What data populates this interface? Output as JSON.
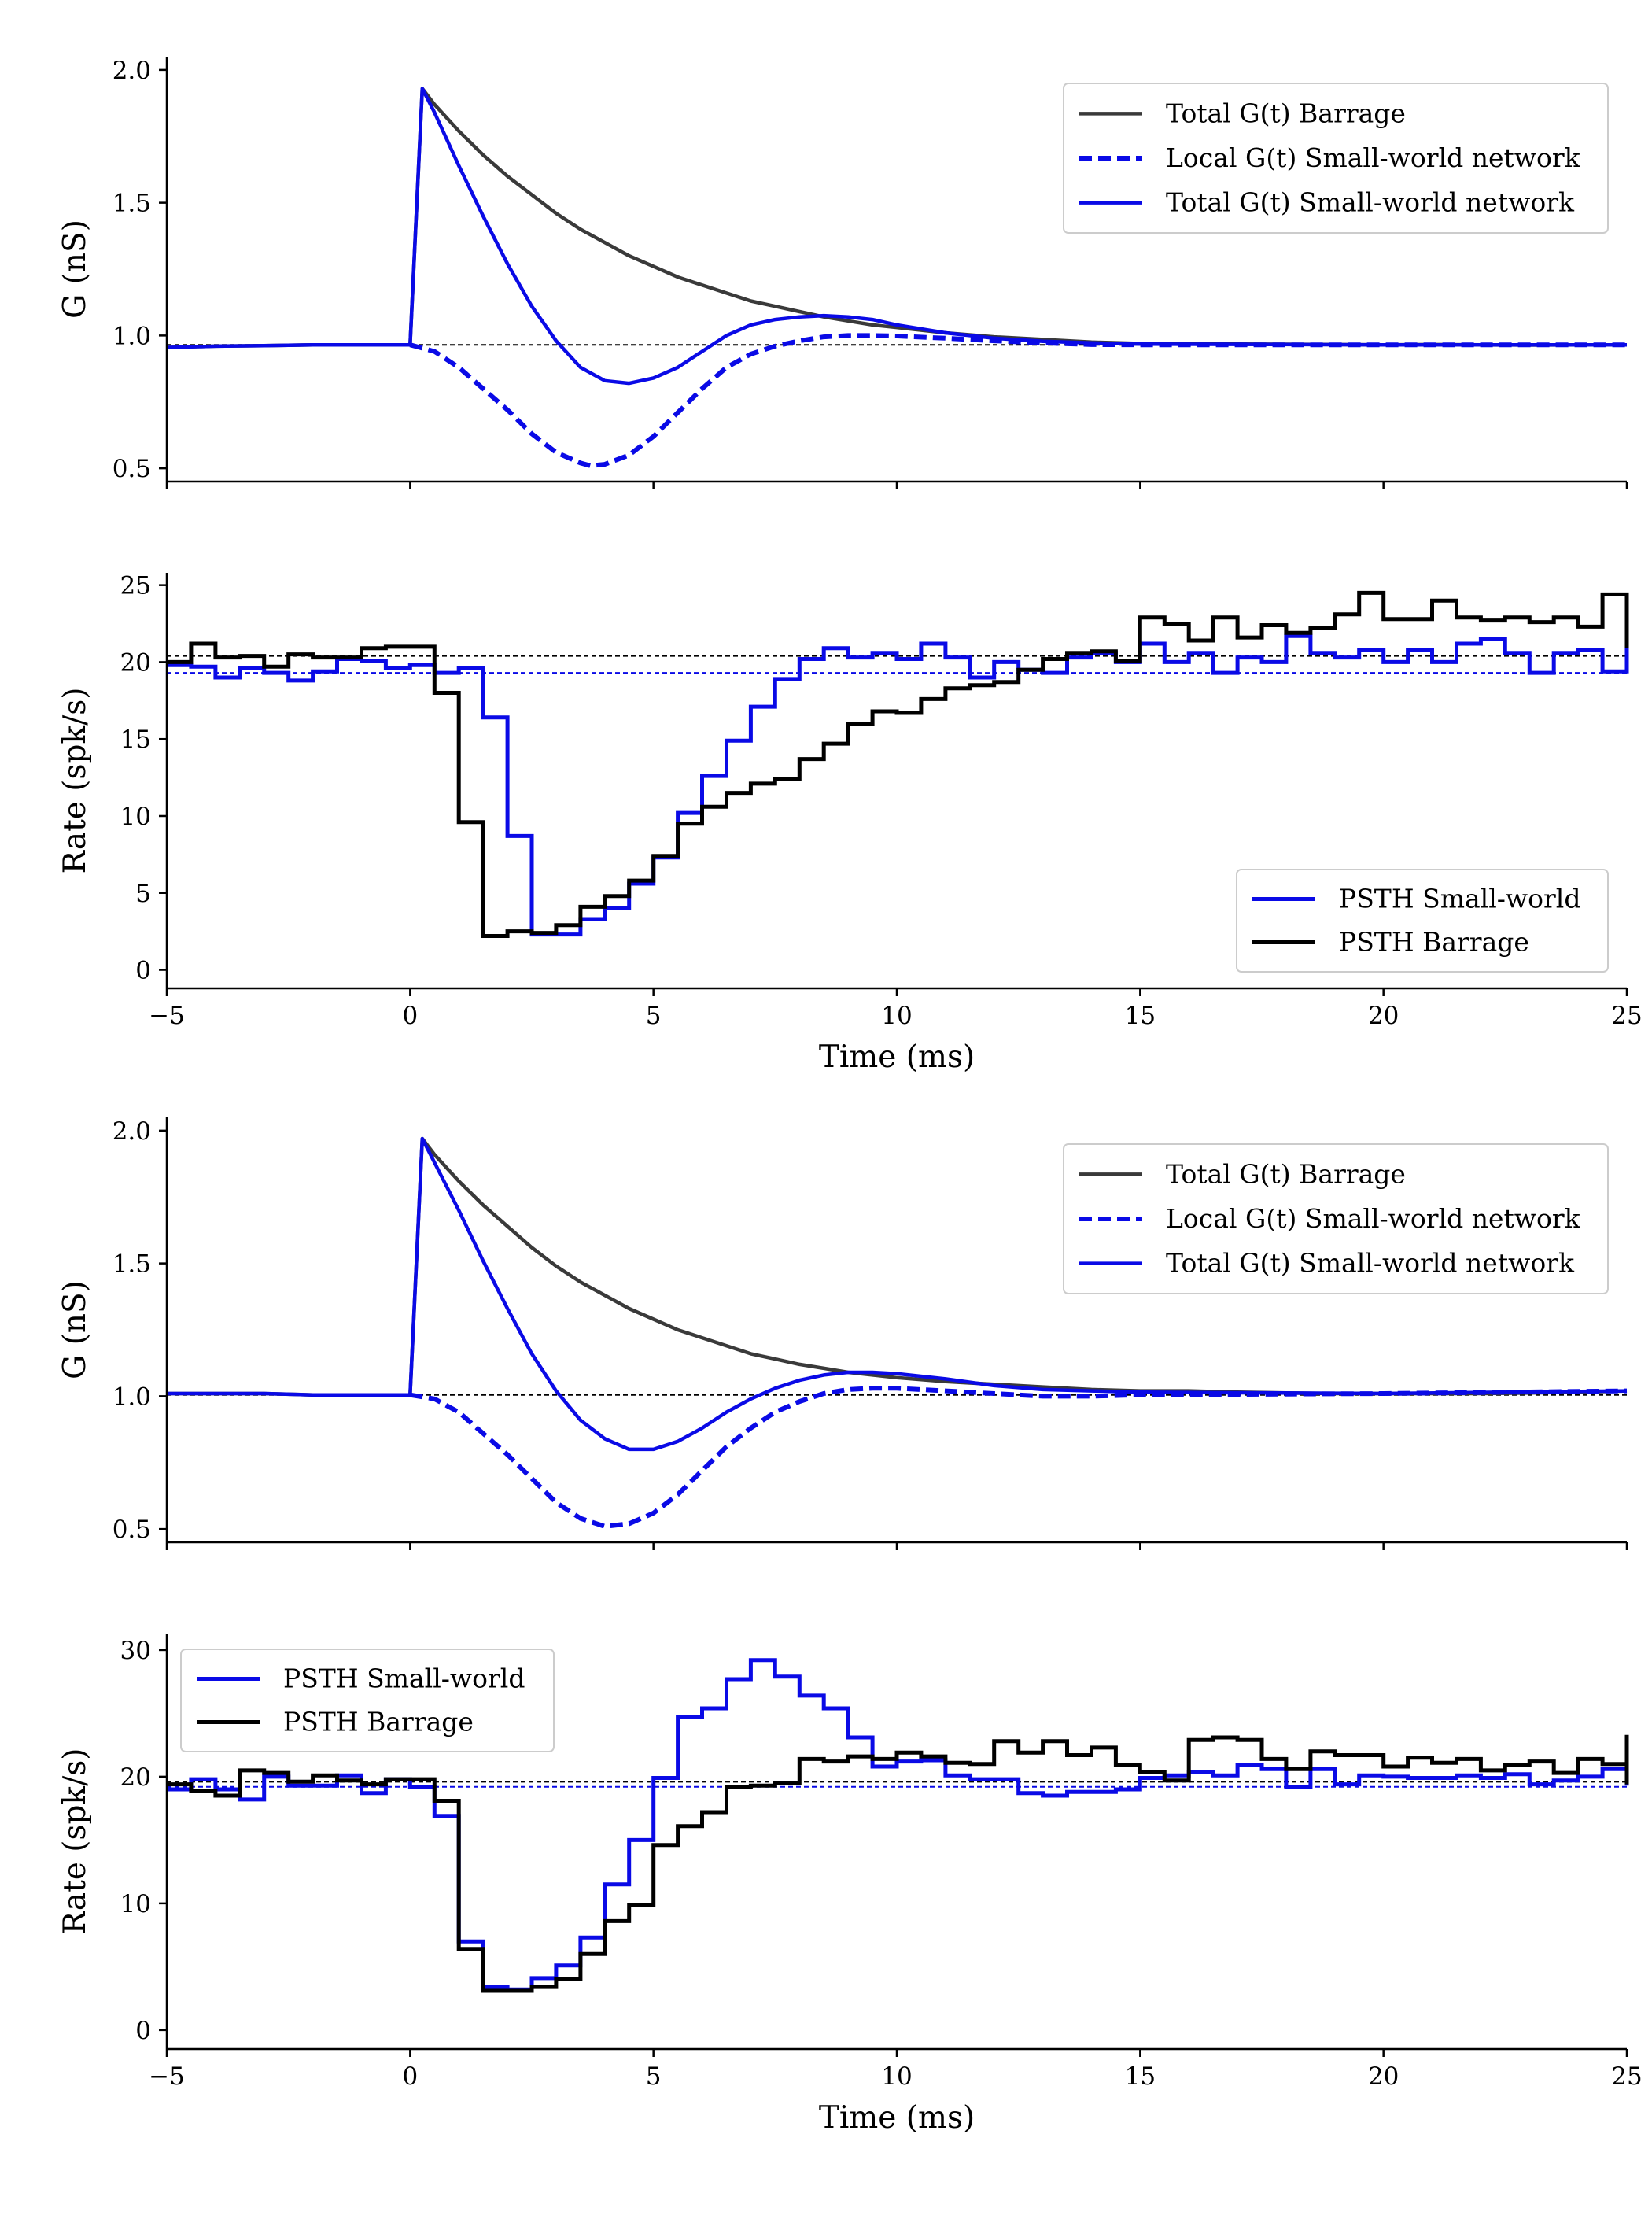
{
  "figure": {
    "colors": {
      "blue": "#0a0ae6",
      "black": "#000000",
      "dark_gray": "#3a3a3a"
    }
  },
  "chart_data": [
    {
      "type": "line",
      "xlim": [
        -5,
        25
      ],
      "ylim": [
        0.45,
        2.05
      ],
      "yticks": [
        0.5,
        1.0,
        1.5,
        2.0
      ],
      "ytick_labels": [
        "0.5",
        "1.0",
        "1.5",
        "2.0"
      ],
      "xticks": [
        -5,
        0,
        5,
        10,
        15,
        20,
        25
      ],
      "xtick_labels": [],
      "xlabel": "",
      "ylabel": "G (nS)",
      "grid": false,
      "legend": "top-right",
      "reference_lines": [
        {
          "y": 0.965,
          "style": "dashed",
          "color": "#000000"
        }
      ],
      "series": [
        {
          "name": "Total G(t) Barrage",
          "style": "solid",
          "color": "#3a3a3a",
          "x": [
            -5,
            -4,
            -3,
            -2,
            -1,
            0,
            0.25,
            0.5,
            1,
            1.5,
            2,
            2.5,
            3,
            3.5,
            4,
            4.5,
            5,
            5.5,
            6,
            6.5,
            7,
            7.5,
            8,
            8.5,
            9,
            9.5,
            10,
            11,
            12,
            13,
            14,
            15,
            16,
            17,
            18,
            19,
            20,
            21,
            22,
            23,
            24,
            25
          ],
          "y": [
            0.955,
            0.96,
            0.962,
            0.965,
            0.965,
            0.965,
            1.93,
            1.87,
            1.77,
            1.68,
            1.6,
            1.53,
            1.46,
            1.4,
            1.35,
            1.3,
            1.26,
            1.22,
            1.19,
            1.16,
            1.13,
            1.11,
            1.09,
            1.07,
            1.055,
            1.04,
            1.03,
            1.01,
            0.995,
            0.985,
            0.975,
            0.97,
            0.97,
            0.968,
            0.967,
            0.966,
            0.965,
            0.966,
            0.965,
            0.964,
            0.965,
            0.965
          ]
        },
        {
          "name": "Local G(t) Small-world network",
          "style": "dashed",
          "color": "#0a0ae6",
          "x": [
            0,
            0.5,
            1,
            1.5,
            2,
            2.5,
            3,
            3.5,
            3.7,
            4,
            4.5,
            5,
            5.5,
            6,
            6.5,
            7,
            7.5,
            8,
            8.5,
            9,
            9.5,
            10,
            11,
            12,
            13,
            14,
            15,
            20,
            25
          ],
          "y": [
            0.965,
            0.94,
            0.88,
            0.8,
            0.72,
            0.63,
            0.56,
            0.52,
            0.51,
            0.515,
            0.55,
            0.62,
            0.71,
            0.8,
            0.88,
            0.93,
            0.96,
            0.98,
            0.995,
            1.0,
            1.0,
            0.998,
            0.99,
            0.98,
            0.972,
            0.966,
            0.965,
            0.965,
            0.965
          ]
        },
        {
          "name": "Total G(t) Small-world network",
          "style": "solid",
          "color": "#0a0ae6",
          "x": [
            -5,
            -4,
            -3,
            -2,
            -1,
            0,
            0.25,
            0.5,
            1,
            1.5,
            2,
            2.5,
            3,
            3.5,
            4,
            4.5,
            5,
            5.5,
            6,
            6.5,
            7,
            7.5,
            8,
            8.5,
            9,
            9.5,
            10,
            11,
            12,
            13,
            14,
            15,
            20,
            25
          ],
          "y": [
            0.955,
            0.96,
            0.962,
            0.965,
            0.965,
            0.965,
            1.93,
            1.84,
            1.64,
            1.45,
            1.27,
            1.11,
            0.98,
            0.88,
            0.83,
            0.82,
            0.84,
            0.88,
            0.94,
            1.0,
            1.04,
            1.06,
            1.07,
            1.075,
            1.07,
            1.06,
            1.04,
            1.01,
            0.99,
            0.978,
            0.972,
            0.968,
            0.965,
            0.965
          ]
        }
      ]
    },
    {
      "type": "line",
      "step": true,
      "xlim": [
        -5,
        25
      ],
      "ylim": [
        -1.2,
        25.8
      ],
      "yticks": [
        0,
        5,
        10,
        15,
        20,
        25
      ],
      "ytick_labels": [
        "0",
        "5",
        "10",
        "15",
        "20",
        "25"
      ],
      "xticks": [
        -5,
        0,
        5,
        10,
        15,
        20,
        25
      ],
      "xtick_labels": [
        "−5",
        "0",
        "5",
        "10",
        "15",
        "20",
        "25"
      ],
      "xlabel": "Time (ms)",
      "ylabel": "Rate (spk/s)",
      "grid": false,
      "legend": "bottom-right",
      "reference_lines": [
        {
          "y": 20.4,
          "style": "dashed",
          "color": "#000000"
        },
        {
          "y": 19.3,
          "style": "dashed",
          "color": "#0a0ae6"
        }
      ],
      "bin_width": 0.5,
      "bin_start": -5,
      "series": [
        {
          "name": "PSTH Small-world",
          "color": "#0a0ae6",
          "values": [
            19.8,
            19.7,
            19.0,
            19.6,
            19.3,
            18.8,
            19.4,
            20.2,
            20.1,
            19.6,
            19.8,
            19.3,
            19.6,
            16.4,
            8.7,
            2.3,
            2.3,
            3.3,
            4.0,
            5.6,
            7.3,
            10.2,
            12.6,
            14.9,
            17.1,
            18.9,
            20.2,
            20.9,
            20.3,
            20.6,
            20.2,
            21.2,
            20.3,
            19.0,
            20.0,
            19.5,
            19.3,
            20.3,
            20.6,
            20.0,
            21.2,
            20.0,
            20.6,
            19.3,
            20.3,
            20.0,
            21.7,
            20.6,
            20.3,
            20.8,
            20.0,
            20.8,
            20.0,
            21.2,
            21.5,
            20.6,
            19.3,
            20.6,
            20.8,
            19.4,
            20.6,
            19.6,
            19.4,
            21.7,
            20.3,
            20.6,
            20.6,
            21.6,
            20.3,
            21.6,
            21.0,
            20.8
          ]
        },
        {
          "name": "PSTH Barrage",
          "color": "#000000",
          "values": [
            20.0,
            21.2,
            20.3,
            20.4,
            19.7,
            20.5,
            20.3,
            20.3,
            20.9,
            21.0,
            21.0,
            18.0,
            9.6,
            2.2,
            2.5,
            2.4,
            2.9,
            4.1,
            4.8,
            5.8,
            7.4,
            9.5,
            10.6,
            11.5,
            12.1,
            12.4,
            13.7,
            14.7,
            16.0,
            16.8,
            16.7,
            17.6,
            18.3,
            18.5,
            18.7,
            19.5,
            20.2,
            20.6,
            20.7,
            20.1,
            22.9,
            22.5,
            21.4,
            22.9,
            21.6,
            22.4,
            21.9,
            22.2,
            23.1,
            24.5,
            22.8,
            22.8,
            24.0,
            22.9,
            22.7,
            22.9,
            22.6,
            22.9,
            22.3,
            24.4,
            22.0,
            24.2,
            20.9,
            22.8,
            24.0,
            22.5,
            24.0,
            24.1,
            22.1,
            21.0,
            23.9,
            23.9
          ]
        }
      ]
    },
    {
      "type": "line",
      "xlim": [
        -5,
        25
      ],
      "ylim": [
        0.45,
        2.05
      ],
      "yticks": [
        0.5,
        1.0,
        1.5,
        2.0
      ],
      "ytick_labels": [
        "0.5",
        "1.0",
        "1.5",
        "2.0"
      ],
      "xticks": [
        -5,
        0,
        5,
        10,
        15,
        20,
        25
      ],
      "xtick_labels": [],
      "xlabel": "",
      "ylabel": "G (nS)",
      "grid": false,
      "legend": "top-right",
      "reference_lines": [
        {
          "y": 1.005,
          "style": "dashed",
          "color": "#000000"
        }
      ],
      "series": [
        {
          "name": "Total G(t) Barrage",
          "style": "solid",
          "color": "#3a3a3a",
          "x": [
            -5,
            -4,
            -3,
            -2,
            -1,
            0,
            0.25,
            0.5,
            1,
            1.5,
            2,
            2.5,
            3,
            3.5,
            4,
            4.5,
            5,
            5.5,
            6,
            6.5,
            7,
            7.5,
            8,
            8.5,
            9,
            9.5,
            10,
            11,
            12,
            13,
            14,
            15,
            16,
            17,
            18,
            19,
            20,
            21,
            22,
            23,
            24,
            25
          ],
          "y": [
            1.01,
            1.01,
            1.01,
            1.005,
            1.005,
            1.005,
            1.97,
            1.91,
            1.81,
            1.72,
            1.64,
            1.56,
            1.49,
            1.43,
            1.38,
            1.33,
            1.29,
            1.25,
            1.22,
            1.19,
            1.16,
            1.14,
            1.12,
            1.105,
            1.09,
            1.08,
            1.07,
            1.055,
            1.045,
            1.035,
            1.025,
            1.02,
            1.02,
            1.015,
            1.012,
            1.01,
            1.01,
            1.01,
            1.01,
            1.012,
            1.015,
            1.02
          ]
        },
        {
          "name": "Local G(t) Small-world network",
          "style": "dashed",
          "color": "#0a0ae6",
          "x": [
            0,
            0.5,
            1,
            1.5,
            2,
            2.5,
            3,
            3.5,
            4,
            4.5,
            5,
            5.5,
            6,
            6.5,
            7,
            7.5,
            8,
            8.5,
            9,
            9.5,
            10,
            11,
            12,
            13,
            14,
            15,
            20,
            25
          ],
          "y": [
            1.005,
            0.99,
            0.94,
            0.86,
            0.78,
            0.69,
            0.6,
            0.54,
            0.51,
            0.52,
            0.56,
            0.63,
            0.72,
            0.81,
            0.88,
            0.94,
            0.98,
            1.01,
            1.025,
            1.03,
            1.03,
            1.02,
            1.01,
            1.0,
            1.0,
            1.005,
            1.01,
            1.02
          ]
        },
        {
          "name": "Total G(t) Small-world network",
          "style": "solid",
          "color": "#0a0ae6",
          "x": [
            -5,
            -4,
            -3,
            -2,
            -1,
            0,
            0.25,
            0.5,
            1,
            1.5,
            2,
            2.5,
            3,
            3.5,
            4,
            4.5,
            5,
            5.5,
            6,
            6.5,
            7,
            7.5,
            8,
            8.5,
            9,
            9.5,
            10,
            11,
            12,
            13,
            14,
            15,
            20,
            25
          ],
          "y": [
            1.01,
            1.01,
            1.01,
            1.005,
            1.005,
            1.005,
            1.97,
            1.88,
            1.7,
            1.51,
            1.33,
            1.16,
            1.02,
            0.91,
            0.84,
            0.8,
            0.8,
            0.83,
            0.88,
            0.94,
            0.99,
            1.03,
            1.06,
            1.08,
            1.09,
            1.09,
            1.085,
            1.065,
            1.04,
            1.025,
            1.02,
            1.015,
            1.01,
            1.02
          ]
        }
      ]
    },
    {
      "type": "line",
      "step": true,
      "xlim": [
        -5,
        25
      ],
      "ylim": [
        -1.5,
        31.3
      ],
      "yticks": [
        0,
        10,
        20,
        30
      ],
      "ytick_labels": [
        "0",
        "10",
        "20",
        "30"
      ],
      "xticks": [
        -5,
        0,
        5,
        10,
        15,
        20,
        25
      ],
      "xtick_labels": [
        "−5",
        "0",
        "5",
        "10",
        "15",
        "20",
        "25"
      ],
      "xlabel": "Time (ms)",
      "ylabel": "Rate (spk/s)",
      "grid": false,
      "legend": "top-left",
      "reference_lines": [
        {
          "y": 19.6,
          "style": "dashed",
          "color": "#000000"
        },
        {
          "y": 19.2,
          "style": "dashed",
          "color": "#0a0ae6"
        }
      ],
      "bin_width": 0.5,
      "bin_start": -5,
      "series": [
        {
          "name": "PSTH Small-world",
          "color": "#0a0ae6",
          "values": [
            19.0,
            19.8,
            19.0,
            18.2,
            20.0,
            19.3,
            19.3,
            20.1,
            18.7,
            19.8,
            19.2,
            16.9,
            7.0,
            3.4,
            3.2,
            4.1,
            5.1,
            7.3,
            11.5,
            15.0,
            19.9,
            24.7,
            25.4,
            27.7,
            29.2,
            27.9,
            26.4,
            25.4,
            23.1,
            20.8,
            21.2,
            21.3,
            20.1,
            19.8,
            19.8,
            18.7,
            18.5,
            18.8,
            18.8,
            19.0,
            19.9,
            20.1,
            20.4,
            20.1,
            20.9,
            20.6,
            19.2,
            20.6,
            19.4,
            20.1,
            20.0,
            19.9,
            19.9,
            20.1,
            19.9,
            20.2,
            19.4,
            19.7,
            20.0,
            20.6,
            19.7,
            19.7,
            19.6,
            19.6,
            19.7,
            19.7,
            19.7,
            19.7,
            19.3,
            19.6,
            20.3,
            20.3
          ]
        },
        {
          "name": "PSTH Barrage",
          "color": "#000000",
          "values": [
            19.4,
            18.9,
            18.5,
            20.5,
            20.3,
            19.6,
            20.1,
            19.7,
            19.4,
            19.8,
            19.8,
            18.1,
            6.4,
            3.1,
            3.1,
            3.4,
            4.0,
            6.0,
            8.6,
            9.9,
            14.6,
            16.1,
            17.2,
            19.2,
            19.3,
            19.5,
            21.4,
            21.2,
            21.6,
            21.4,
            21.9,
            21.6,
            21.1,
            21.0,
            22.8,
            21.9,
            22.8,
            21.7,
            22.3,
            20.9,
            20.4,
            19.7,
            22.9,
            23.1,
            22.9,
            21.4,
            20.6,
            22.0,
            21.7,
            21.7,
            20.8,
            21.5,
            21.1,
            21.4,
            20.5,
            20.9,
            21.2,
            20.3,
            21.4,
            21.0,
            21.8,
            20.4,
            21.2,
            23.3,
            23.0,
            22.0,
            21.2,
            20.5,
            21.0,
            19.4,
            22.4,
            22.8
          ]
        }
      ]
    }
  ]
}
